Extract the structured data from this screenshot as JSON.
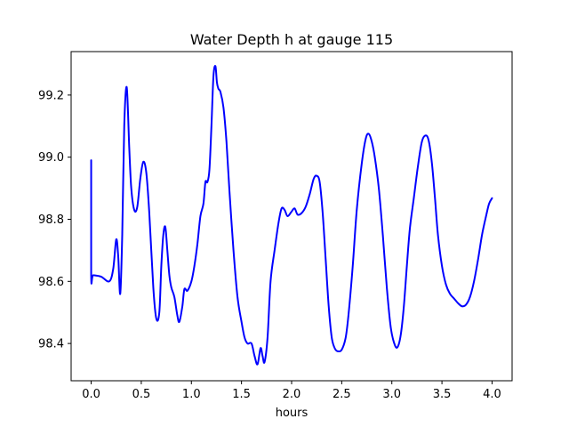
{
  "chart_data": {
    "type": "line",
    "title": "Water Depth h at gauge 115",
    "xlabel": "hours",
    "ylabel": "",
    "xlim": [
      -0.2,
      4.2
    ],
    "ylim": [
      98.28,
      99.34
    ],
    "xticks": [
      0.0,
      0.5,
      1.0,
      1.5,
      2.0,
      2.5,
      3.0,
      3.5,
      4.0
    ],
    "xtick_labels": [
      "0.0",
      "0.5",
      "1.0",
      "1.5",
      "2.0",
      "2.5",
      "3.0",
      "3.5",
      "4.0"
    ],
    "yticks": [
      98.4,
      98.6,
      98.8,
      99.0,
      99.2
    ],
    "ytick_labels": [
      "98.4",
      "98.6",
      "98.8",
      "99.0",
      "99.2"
    ],
    "grid": false,
    "series": [
      {
        "color": "#0000ff",
        "x": [
          0.0,
          0.0,
          0.02,
          0.1,
          0.18,
          0.22,
          0.25,
          0.27,
          0.29,
          0.31,
          0.33,
          0.355,
          0.38,
          0.4,
          0.43,
          0.46,
          0.49,
          0.52,
          0.55,
          0.58,
          0.62,
          0.65,
          0.68,
          0.7,
          0.72,
          0.74,
          0.76,
          0.78,
          0.8,
          0.83,
          0.86,
          0.88,
          0.91,
          0.93,
          0.96,
          1.0,
          1.03,
          1.06,
          1.09,
          1.12,
          1.14,
          1.16,
          1.18,
          1.2,
          1.22,
          1.24,
          1.255,
          1.27,
          1.29,
          1.32,
          1.35,
          1.38,
          1.42,
          1.46,
          1.5,
          1.53,
          1.56,
          1.6,
          1.63,
          1.66,
          1.69,
          1.71,
          1.73,
          1.76,
          1.79,
          1.83,
          1.87,
          1.9,
          1.93,
          1.96,
          2.0,
          2.03,
          2.06,
          2.1,
          2.14,
          2.18,
          2.22,
          2.25,
          2.28,
          2.31,
          2.34,
          2.37,
          2.4,
          2.43,
          2.46,
          2.5,
          2.54,
          2.57,
          2.61,
          2.65,
          2.7,
          2.74,
          2.77,
          2.8,
          2.83,
          2.87,
          2.91,
          2.95,
          2.99,
          3.03,
          3.06,
          3.09,
          3.12,
          3.15,
          3.18,
          3.22,
          3.26,
          3.3,
          3.34,
          3.37,
          3.4,
          3.43,
          3.46,
          3.5,
          3.54,
          3.58,
          3.62,
          3.66,
          3.7,
          3.74,
          3.78,
          3.82,
          3.86,
          3.9,
          3.94,
          3.97,
          4.0
        ],
        "y": [
          98.99,
          98.62,
          98.62,
          98.615,
          98.6,
          98.64,
          98.735,
          98.68,
          98.56,
          98.75,
          99.1,
          99.225,
          99.03,
          98.9,
          98.83,
          98.84,
          98.93,
          98.985,
          98.95,
          98.82,
          98.58,
          98.48,
          98.5,
          98.65,
          98.75,
          98.775,
          98.7,
          98.62,
          98.58,
          98.55,
          98.49,
          98.47,
          98.52,
          98.575,
          98.57,
          98.6,
          98.65,
          98.72,
          98.81,
          98.85,
          98.92,
          98.92,
          98.96,
          99.1,
          99.26,
          99.293,
          99.24,
          99.22,
          99.21,
          99.16,
          99.05,
          98.89,
          98.7,
          98.55,
          98.47,
          98.42,
          98.4,
          98.4,
          98.36,
          98.333,
          98.385,
          98.36,
          98.34,
          98.42,
          98.6,
          98.7,
          98.79,
          98.835,
          98.83,
          98.81,
          98.825,
          98.835,
          98.815,
          98.82,
          98.84,
          98.88,
          98.93,
          98.94,
          98.92,
          98.82,
          98.67,
          98.52,
          98.42,
          98.385,
          98.375,
          98.38,
          98.42,
          98.5,
          98.65,
          98.83,
          98.98,
          99.06,
          99.075,
          99.05,
          99.0,
          98.9,
          98.75,
          98.58,
          98.45,
          98.395,
          98.39,
          98.43,
          98.52,
          98.65,
          98.77,
          98.87,
          98.97,
          99.05,
          99.07,
          99.05,
          98.98,
          98.87,
          98.75,
          98.65,
          98.59,
          98.56,
          98.545,
          98.53,
          98.52,
          98.525,
          98.55,
          98.6,
          98.67,
          98.75,
          98.81,
          98.85,
          98.868
        ]
      }
    ]
  }
}
